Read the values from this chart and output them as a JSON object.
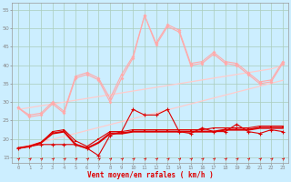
{
  "bg_color": "#cceeff",
  "grid_color": "#aaddcc",
  "xlabel": "Vent moyen/en rafales ( km/h )",
  "ylabel_ticks": [
    15,
    20,
    25,
    30,
    35,
    40,
    45,
    50,
    55
  ],
  "xlim": [
    -0.5,
    23.5
  ],
  "ylim": [
    13.5,
    57
  ],
  "x": [
    0,
    1,
    2,
    3,
    4,
    5,
    6,
    7,
    8,
    9,
    10,
    11,
    12,
    13,
    14,
    15,
    16,
    17,
    18,
    19,
    20,
    21,
    22,
    23
  ],
  "line_dark1": [
    17.5,
    18.0,
    18.5,
    18.5,
    18.5,
    18.5,
    17.5,
    15.5,
    21.0,
    22.0,
    28.0,
    26.5,
    26.5,
    28.0,
    22.0,
    21.5,
    23.0,
    22.0,
    22.0,
    24.0,
    22.0,
    21.5,
    22.5,
    22.0
  ],
  "line_dark2": [
    17.5,
    18.0,
    19.0,
    21.5,
    22.0,
    18.5,
    17.5,
    19.0,
    21.5,
    21.5,
    22.0,
    22.0,
    22.0,
    22.0,
    22.0,
    22.0,
    22.0,
    22.0,
    22.5,
    22.5,
    22.5,
    23.0,
    23.0,
    23.0
  ],
  "line_dark3": [
    17.5,
    18.0,
    19.0,
    22.0,
    22.5,
    19.5,
    18.0,
    20.0,
    22.0,
    22.0,
    22.5,
    22.5,
    22.5,
    22.5,
    22.5,
    22.5,
    22.5,
    23.0,
    23.0,
    23.0,
    23.0,
    23.5,
    23.5,
    23.5
  ],
  "line_trend_lo": [
    17.5,
    18.3,
    19.1,
    19.9,
    20.7,
    21.5,
    22.3,
    23.1,
    23.9,
    24.7,
    25.5,
    26.3,
    27.1,
    27.9,
    28.7,
    29.5,
    30.3,
    31.1,
    31.9,
    32.7,
    33.5,
    34.3,
    35.1,
    35.9
  ],
  "line_trend_hi": [
    28.0,
    28.5,
    29.0,
    29.5,
    30.0,
    30.5,
    31.0,
    31.5,
    32.0,
    32.5,
    33.0,
    33.5,
    34.0,
    34.5,
    35.0,
    35.5,
    36.0,
    36.5,
    37.0,
    37.5,
    38.0,
    38.5,
    39.0,
    40.0
  ],
  "line_pink_hi": [
    28.5,
    26.0,
    26.5,
    29.5,
    27.0,
    36.5,
    37.5,
    36.0,
    30.0,
    36.5,
    42.0,
    53.5,
    45.5,
    50.5,
    49.0,
    40.0,
    40.5,
    43.0,
    40.5,
    40.0,
    37.5,
    35.0,
    35.5,
    40.5
  ],
  "line_pink_mid": [
    28.5,
    26.5,
    27.0,
    30.0,
    27.5,
    37.0,
    38.0,
    36.5,
    31.0,
    37.5,
    42.5,
    53.5,
    46.0,
    51.0,
    49.5,
    40.5,
    41.0,
    43.5,
    41.0,
    40.5,
    38.0,
    35.5,
    36.0,
    41.0
  ],
  "color_dark_red": "#dd0000",
  "color_medium_red": "#ee4444",
  "color_pink": "#ff8888",
  "color_light_pink": "#ffaaaa",
  "color_vlight_pink": "#ffcccc"
}
